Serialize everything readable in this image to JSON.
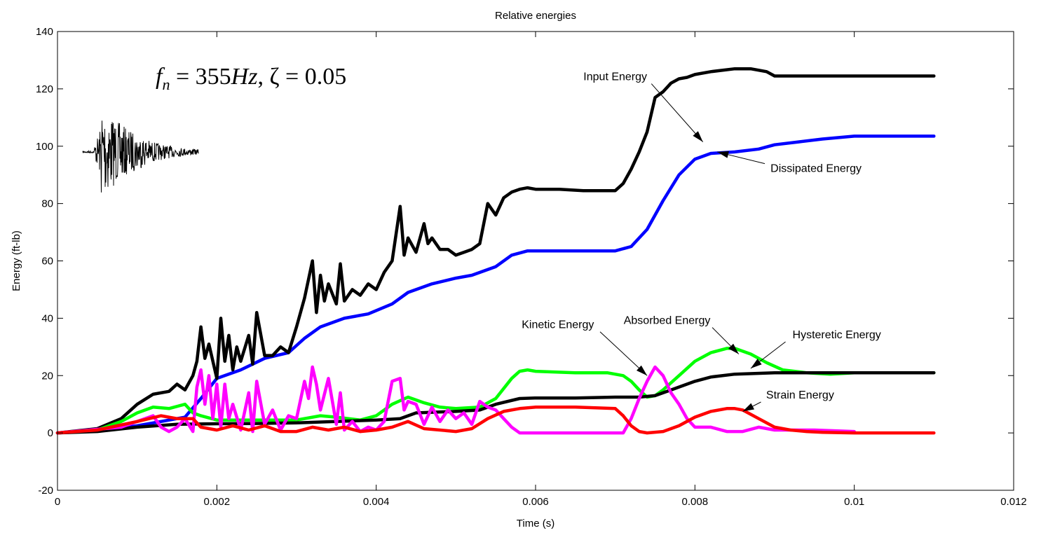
{
  "chart_data": {
    "type": "line",
    "title": "Relative energies",
    "xlabel": "Time (s)",
    "ylabel": "Energy (ft-lb)",
    "xlim": [
      0,
      0.012
    ],
    "ylim": [
      -20,
      140
    ],
    "xticks": [
      0,
      0.002,
      0.004,
      0.006,
      0.008,
      0.01,
      0.012
    ],
    "xtick_labels": [
      "0",
      "0.002",
      "0.004",
      "0.006",
      "0.008",
      "0.01",
      "0.012"
    ],
    "yticks": [
      -20,
      0,
      20,
      40,
      60,
      80,
      100,
      120,
      140
    ],
    "ytick_labels": [
      "-20",
      "0",
      "20",
      "40",
      "60",
      "80",
      "100",
      "120",
      "140"
    ],
    "grid": false,
    "legend": "none",
    "formula": {
      "f": "f",
      "sub": "n",
      "eq1": " = 355",
      "hz": "Hz",
      "zeta": ", ζ = 0.05"
    },
    "series": [
      {
        "color": "#0000ff",
        "x": [
          0,
          0.0005,
          0.001,
          0.0013,
          0.0016,
          0.0018,
          0.002,
          0.0023,
          0.0026,
          0.0029,
          0.0031,
          0.0033,
          0.0036,
          0.0039,
          0.0042,
          0.0044,
          0.0047,
          0.005,
          0.0052,
          0.0055,
          0.0057,
          0.0059,
          0.0062,
          0.0066,
          0.007,
          0.0072,
          0.0074,
          0.0076,
          0.0078,
          0.008,
          0.0082,
          0.0085,
          0.0088,
          0.009,
          0.0093,
          0.0096,
          0.01,
          0.011
        ],
        "y": [
          0,
          0.7,
          2.5,
          4,
          5.5,
          12,
          19,
          22,
          26,
          28,
          33,
          37,
          40,
          41.5,
          45,
          49,
          52,
          54,
          55,
          58,
          62,
          63.5,
          63.5,
          63.5,
          63.5,
          65,
          71,
          81,
          90,
          95.5,
          97.5,
          98,
          99,
          100.5,
          101.5,
          102.5,
          103.5,
          103.5
        ]
      },
      {
        "color": "#000000",
        "x": [
          0,
          0.0005,
          0.0008,
          0.001,
          0.0012,
          0.0014,
          0.0015,
          0.0016,
          0.0017,
          0.00175,
          0.0018,
          0.00185,
          0.0019,
          0.002,
          0.00205,
          0.0021,
          0.00215,
          0.0022,
          0.00225,
          0.0023,
          0.0024,
          0.00245,
          0.0025,
          0.0026,
          0.0027,
          0.0028,
          0.0029,
          0.003,
          0.0031,
          0.0032,
          0.00325,
          0.0033,
          0.00335,
          0.0034,
          0.0035,
          0.00355,
          0.0036,
          0.0037,
          0.0038,
          0.0039,
          0.004,
          0.0041,
          0.0042,
          0.0043,
          0.00435,
          0.0044,
          0.0045,
          0.0046,
          0.00465,
          0.0047,
          0.0048,
          0.0049,
          0.005,
          0.0051,
          0.0052,
          0.0053,
          0.0054,
          0.0055,
          0.0056,
          0.0057,
          0.0058,
          0.0059,
          0.006,
          0.0063,
          0.0066,
          0.0069,
          0.007,
          0.0071,
          0.0072,
          0.0073,
          0.0074,
          0.0075,
          0.0076,
          0.0077,
          0.0078,
          0.0079,
          0.008,
          0.0082,
          0.0085,
          0.0087,
          0.0089,
          0.009,
          0.0095,
          0.01,
          0.011
        ],
        "y": [
          0,
          1.5,
          5,
          10,
          13.5,
          14.5,
          17,
          15,
          20,
          25,
          37,
          26,
          31,
          19,
          40,
          25,
          34,
          22,
          30,
          25,
          34,
          24,
          42,
          27,
          27,
          30,
          28,
          37,
          47,
          60,
          42,
          55,
          46,
          52,
          45,
          59,
          46,
          50,
          48,
          52,
          50,
          56,
          60,
          79,
          62,
          68,
          63,
          73,
          66,
          68,
          64,
          64,
          62,
          63,
          64,
          66,
          80,
          76,
          82,
          84,
          85,
          85.5,
          85,
          85,
          84.5,
          84.5,
          84.5,
          87,
          92,
          98,
          105,
          117,
          119,
          122,
          123.5,
          124,
          125,
          126,
          127,
          127,
          126,
          124.5,
          124.5,
          124.5,
          124.5
        ]
      },
      {
        "color": "#00ff00",
        "x": [
          0,
          0.0005,
          0.0008,
          0.001,
          0.0012,
          0.0014,
          0.0016,
          0.0017,
          0.0018,
          0.002,
          0.0022,
          0.0025,
          0.0028,
          0.003,
          0.0033,
          0.0035,
          0.0038,
          0.004,
          0.0042,
          0.0044,
          0.0046,
          0.0048,
          0.005,
          0.0053,
          0.0055,
          0.0057,
          0.0058,
          0.0059,
          0.006,
          0.0065,
          0.0069,
          0.0071,
          0.0072,
          0.0073,
          0.0074,
          0.0075,
          0.0076,
          0.0078,
          0.008,
          0.0082,
          0.0084,
          0.0085,
          0.0087,
          0.0089,
          0.0091,
          0.0094,
          0.0097,
          0.01,
          0.011
        ],
        "y": [
          0,
          1,
          4,
          7,
          9,
          8.5,
          10,
          7,
          6,
          4.5,
          4.5,
          4.5,
          4.5,
          4.5,
          6,
          5.5,
          4.5,
          6,
          10,
          12.5,
          10.5,
          9,
          8.5,
          9,
          12,
          19,
          21.5,
          22,
          21.5,
          21,
          21,
          20,
          18,
          15,
          12.5,
          13,
          15,
          20,
          25,
          28,
          29.5,
          29.5,
          27.5,
          24.5,
          22,
          21,
          20.5,
          21,
          21
        ]
      },
      {
        "color": "#000000",
        "x": [
          0,
          0.0005,
          0.001,
          0.0015,
          0.002,
          0.0025,
          0.003,
          0.0035,
          0.004,
          0.0043,
          0.0045,
          0.005,
          0.0053,
          0.0055,
          0.0058,
          0.006,
          0.0065,
          0.007,
          0.0073,
          0.0075,
          0.0077,
          0.008,
          0.0082,
          0.0085,
          0.009,
          0.01,
          0.011
        ],
        "y": [
          0,
          0.5,
          2,
          3,
          3.2,
          3.3,
          3.5,
          4,
          4.5,
          5,
          7,
          7.5,
          8,
          10,
          12,
          12.2,
          12.2,
          12.5,
          12.5,
          13,
          15,
          18,
          19.5,
          20.5,
          21,
          21,
          21
        ]
      },
      {
        "color": "#ff00ff",
        "x": [
          0,
          0.0008,
          0.001,
          0.0012,
          0.0013,
          0.0014,
          0.0015,
          0.0016,
          0.0017,
          0.00175,
          0.0018,
          0.00185,
          0.0019,
          0.00195,
          0.002,
          0.00205,
          0.0021,
          0.00215,
          0.0022,
          0.0023,
          0.0024,
          0.00245,
          0.0025,
          0.0026,
          0.0027,
          0.0028,
          0.0029,
          0.003,
          0.0031,
          0.00315,
          0.0032,
          0.00325,
          0.0033,
          0.0034,
          0.0035,
          0.00355,
          0.0036,
          0.0037,
          0.0038,
          0.0039,
          0.004,
          0.0041,
          0.0042,
          0.0043,
          0.00435,
          0.0044,
          0.0045,
          0.0046,
          0.0047,
          0.0048,
          0.0049,
          0.005,
          0.0051,
          0.0052,
          0.0053,
          0.0054,
          0.0055,
          0.0056,
          0.0057,
          0.0058,
          0.006,
          0.0065,
          0.007,
          0.0071,
          0.0072,
          0.0073,
          0.0074,
          0.0075,
          0.0076,
          0.0077,
          0.0078,
          0.0079,
          0.008,
          0.0082,
          0.0084,
          0.0086,
          0.0088,
          0.009,
          0.0095,
          0.01
        ],
        "y": [
          0,
          2,
          4,
          6,
          2,
          0.5,
          2,
          5,
          0.5,
          16,
          22,
          10,
          20,
          5,
          17,
          2,
          17,
          5,
          10,
          1,
          14,
          0.5,
          18,
          3,
          8,
          1,
          6,
          5,
          18,
          12,
          23,
          17,
          8,
          19,
          3,
          14,
          1,
          4,
          0.5,
          2,
          1,
          4,
          18,
          19,
          8,
          11,
          10,
          3,
          9,
          4,
          8,
          5,
          7,
          3,
          11,
          9,
          8,
          5,
          2,
          0,
          0,
          0,
          0,
          0,
          5,
          12,
          18,
          23,
          20,
          14,
          10,
          5,
          2,
          2,
          0.5,
          0.5,
          2,
          1,
          1,
          0.5
        ]
      },
      {
        "color": "#ff0000",
        "x": [
          0,
          0.0005,
          0.001,
          0.0013,
          0.0015,
          0.0017,
          0.0018,
          0.002,
          0.0022,
          0.0024,
          0.0026,
          0.0028,
          0.003,
          0.0032,
          0.0034,
          0.0036,
          0.0038,
          0.004,
          0.0042,
          0.0044,
          0.0046,
          0.0048,
          0.005,
          0.0052,
          0.0054,
          0.0056,
          0.0058,
          0.006,
          0.0065,
          0.007,
          0.0071,
          0.0072,
          0.0073,
          0.0074,
          0.0076,
          0.0078,
          0.008,
          0.0082,
          0.0084,
          0.0085,
          0.0086,
          0.0088,
          0.009,
          0.0092,
          0.0094,
          0.0096,
          0.01,
          0.011
        ],
        "y": [
          0,
          1,
          4,
          6,
          5,
          5,
          2,
          1,
          2.5,
          1,
          2.5,
          0.5,
          0.5,
          2,
          1,
          2,
          0.5,
          1,
          2,
          4,
          1.5,
          1,
          0.5,
          1.5,
          5,
          7.5,
          8.5,
          9,
          9,
          8.5,
          6,
          2.5,
          0.5,
          0,
          0.5,
          2.5,
          5.5,
          7.5,
          8.5,
          8.5,
          8,
          5,
          2,
          1,
          0.5,
          0.2,
          0,
          0
        ]
      }
    ],
    "annotations": [
      {
        "text": "Input Energy",
        "x": 0.007,
        "y": 123,
        "target_x": 0.0081,
        "target_y": 101.5
      },
      {
        "text": "Dissipated Energy",
        "x": 0.00952,
        "y": 91,
        "target_x": 0.00828,
        "target_y": 98
      },
      {
        "text": "Kinetic Energy",
        "x": 0.00628,
        "y": 36.5,
        "target_x": 0.0074,
        "target_y": 20
      },
      {
        "text": "Absorbed Energy",
        "x": 0.00765,
        "y": 38,
        "target_x": 0.00855,
        "target_y": 27.5
      },
      {
        "text": "Hysteretic Energy",
        "x": 0.00978,
        "y": 33,
        "target_x": 0.0087,
        "target_y": 22.5
      },
      {
        "text": "Strain Energy",
        "x": 0.00932,
        "y": 12,
        "target_x": 0.0086,
        "target_y": 7.5
      }
    ]
  }
}
